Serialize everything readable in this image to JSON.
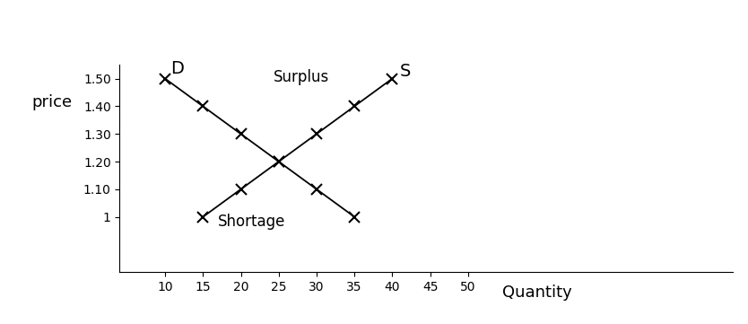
{
  "chart_data": {
    "type": "line",
    "x_label": "Quantity",
    "y_label": "price",
    "xlim": [
      4,
      85
    ],
    "ylim": [
      0.8,
      1.55
    ],
    "xticks": [
      10,
      15,
      20,
      25,
      30,
      35,
      40,
      45,
      50
    ],
    "yticks": [
      1,
      {
        "value": 1.1,
        "label": "1.10"
      },
      {
        "value": 1.2,
        "label": "1.20"
      },
      {
        "value": 1.3,
        "label": "1.30"
      },
      {
        "value": 1.4,
        "label": "1.40"
      },
      {
        "value": 1.5,
        "label": "1.50"
      }
    ],
    "series": [
      {
        "name": "D",
        "color": "#000000",
        "marker": "x",
        "line_style": "solid",
        "x": [
          10,
          15,
          20,
          25,
          30,
          35
        ],
        "values": [
          1.5,
          1.4,
          1.3,
          1.2,
          1.1,
          1.0
        ]
      },
      {
        "name": "S",
        "color": "#000000",
        "marker": "x",
        "line_style": "solid",
        "x": [
          15,
          20,
          25,
          30,
          35,
          40
        ],
        "values": [
          1.0,
          1.1,
          1.2,
          1.3,
          1.4,
          1.5
        ]
      }
    ],
    "annotations": [
      "Surplus",
      "Shortage"
    ]
  }
}
